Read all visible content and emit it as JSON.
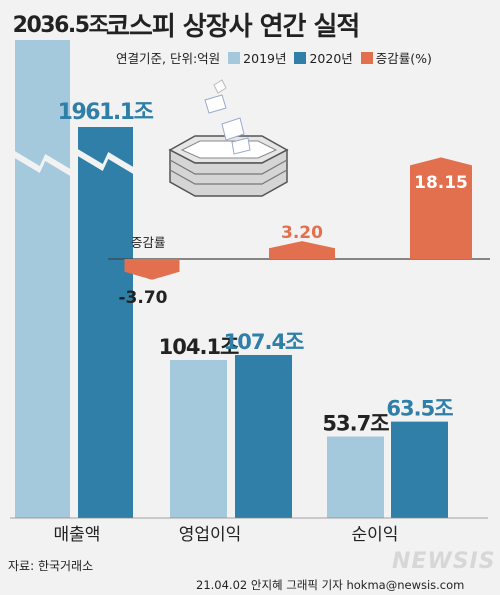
{
  "title": "코스피 상장사 연간 실적",
  "legend": {
    "basis": "연결기준, 단위:억원",
    "items": [
      {
        "label": "2019년",
        "color": "#a4c9dd"
      },
      {
        "label": "2020년",
        "color": "#2f7fa9"
      },
      {
        "label": "증감률(%)",
        "color": "#e2704f"
      }
    ]
  },
  "colors": {
    "y2019": "#a4c9dd",
    "y2020": "#2f7fa9",
    "change": "#e2704f",
    "label2019": "#222222",
    "label2020": "#2f7fa9",
    "baseline": "#444444"
  },
  "chart_data": {
    "type": "bar",
    "title": "코스피 상장사 연간 실적",
    "unit_note": "연결기준, 단위:억원",
    "categories": [
      "매출액",
      "영업이익",
      "순이익"
    ],
    "series": [
      {
        "name": "2019년",
        "values": [
          2036.5,
          104.1,
          53.7
        ],
        "labels": [
          "2036.5조",
          "104.1조",
          "53.7조"
        ]
      },
      {
        "name": "2020년",
        "values": [
          1961.1,
          107.4,
          63.5
        ],
        "labels": [
          "1961.1조",
          "107.4조",
          "63.5조"
        ]
      },
      {
        "name": "증감률(%)",
        "values": [
          -3.7,
          3.2,
          18.15
        ],
        "labels": [
          "-3.70",
          "3.20",
          "18.15"
        ]
      }
    ],
    "change_axis_label": "증감률",
    "broken_axis_category": "매출액",
    "grid": false,
    "legend_placement": "top"
  },
  "footer": {
    "source": "자료: 한국거래소",
    "credit": "21.04.02 안지혜 그래픽 기자 hokma@newsis.com",
    "logo": "NEWSIS"
  }
}
